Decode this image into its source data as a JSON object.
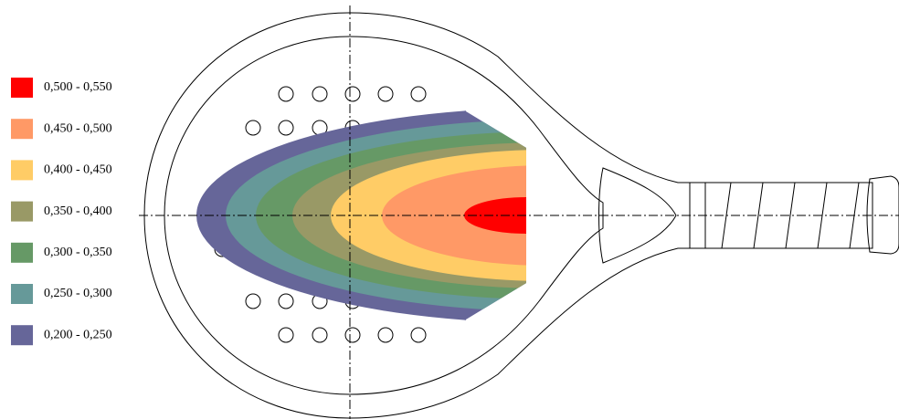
{
  "legend": {
    "items": [
      {
        "label": "0,500 - 0,550",
        "color": "#ff0000"
      },
      {
        "label": "0,450 - 0,500",
        "color": "#ff9966"
      },
      {
        "label": "0,400 - 0,450",
        "color": "#ffcc66"
      },
      {
        "label": "0,350 - 0,400",
        "color": "#999966"
      },
      {
        "label": "0,300 - 0,350",
        "color": "#669966"
      },
      {
        "label": "0,250 - 0,300",
        "color": "#669999"
      },
      {
        "label": "0,200 - 0,250",
        "color": "#666699"
      }
    ]
  }
}
